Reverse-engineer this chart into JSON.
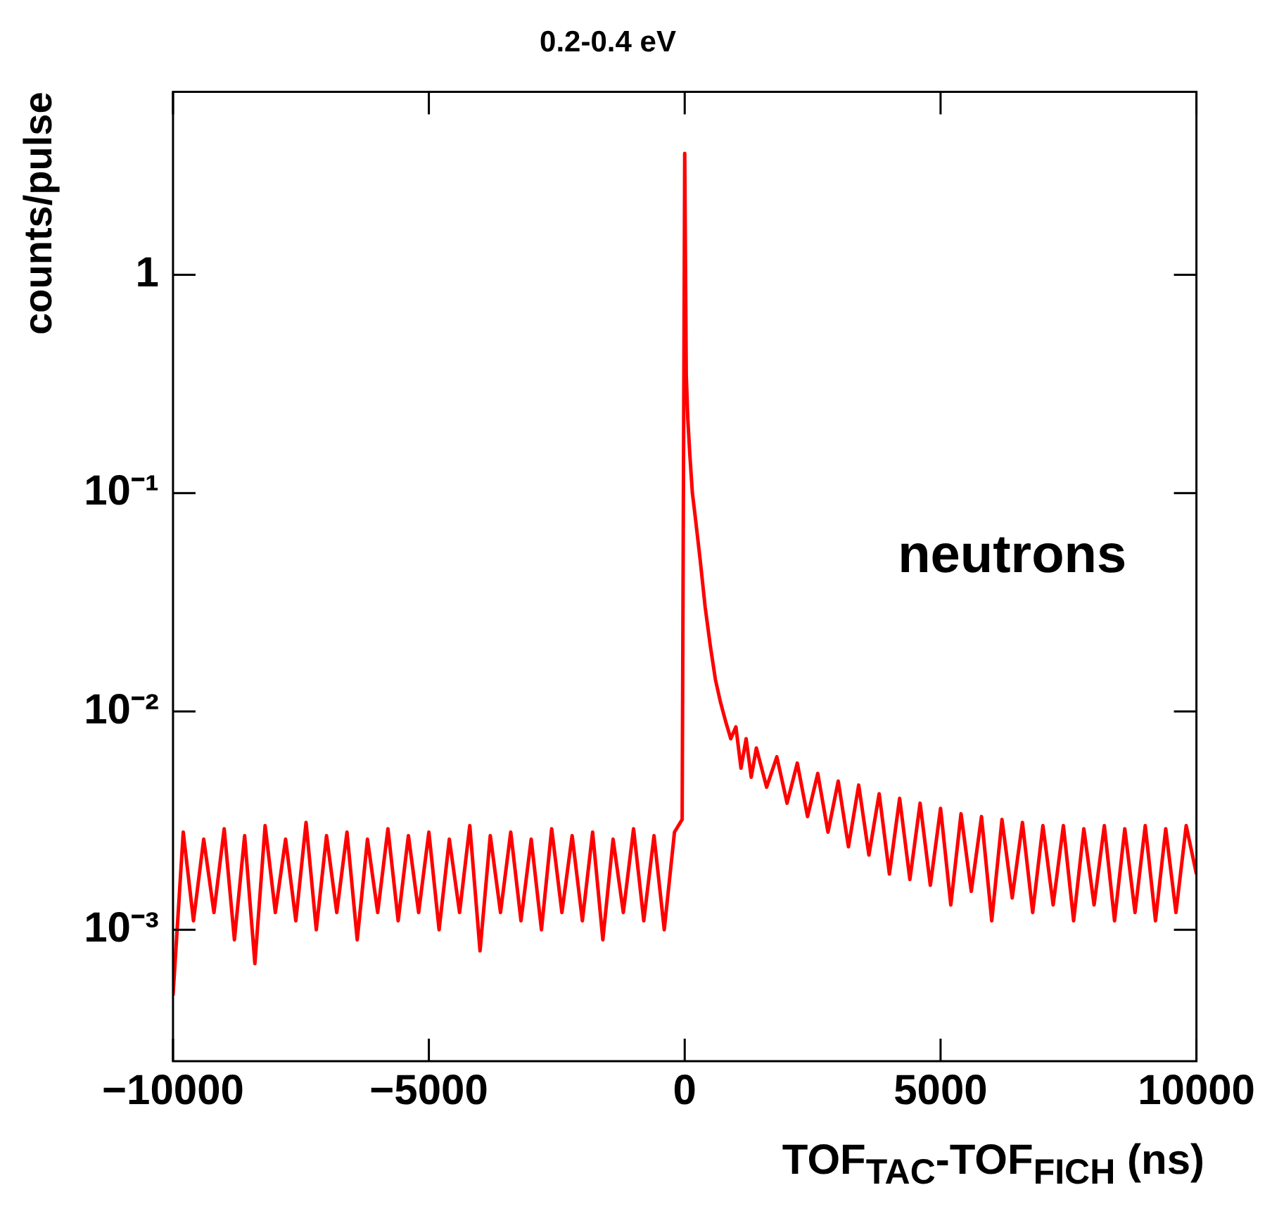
{
  "chart_data": {
    "type": "line",
    "title": "0.2-0.4 eV",
    "xlabel": "TOF$_{TAC}$-TOF$_{FICH}$ (ns)",
    "ylabel": "counts/pulse",
    "xlim": [
      -10000,
      10000
    ],
    "xticks": [
      {
        "value": -10000,
        "label": "−10000"
      },
      {
        "value": -5000,
        "label": "−5000"
      },
      0,
      5000,
      10000
    ],
    "ylim": [
      0.00025,
      6.9
    ],
    "yticks": [
      {
        "value": 0.001,
        "label": "10⁻³"
      },
      {
        "value": 0.01,
        "label": "10⁻²"
      },
      {
        "value": 0.1,
        "label": "10⁻¹"
      },
      1
    ],
    "log": "y",
    "grid": false,
    "legend": false,
    "marker": "none",
    "line_style": "solid",
    "annotations": [
      "neutrons"
    ],
    "series": [
      {
        "color": "#ff0000",
        "x": [
          -10000,
          -9800,
          -9600,
          -9400,
          -9200,
          -9000,
          -8800,
          -8600,
          -8400,
          -8200,
          -8000,
          -7800,
          -7600,
          -7400,
          -7200,
          -7000,
          -6800,
          -6600,
          -6400,
          -6200,
          -6000,
          -5800,
          -5600,
          -5400,
          -5200,
          -5000,
          -4800,
          -4600,
          -4400,
          -4200,
          -4000,
          -3800,
          -3600,
          -3400,
          -3200,
          -3000,
          -2800,
          -2600,
          -2400,
          -2200,
          -2000,
          -1800,
          -1600,
          -1400,
          -1200,
          -1000,
          -800,
          -600,
          -400,
          -200,
          -50,
          0,
          30,
          60,
          100,
          150,
          200,
          300,
          400,
          500,
          600,
          700,
          800,
          900,
          1000,
          1100,
          1200,
          1300,
          1400,
          1600,
          1800,
          2000,
          2200,
          2400,
          2600,
          2800,
          3000,
          3200,
          3400,
          3600,
          3800,
          4000,
          4200,
          4400,
          4600,
          4800,
          5000,
          5200,
          5400,
          5600,
          5800,
          6000,
          6200,
          6400,
          6600,
          6800,
          7000,
          7200,
          7400,
          7600,
          7800,
          8000,
          8200,
          8400,
          8600,
          8800,
          9000,
          9200,
          9400,
          9600,
          9800,
          10000
        ],
        "values": [
          0.0005,
          0.0028,
          0.0011,
          0.0026,
          0.0012,
          0.0029,
          0.0009,
          0.0027,
          0.0007,
          0.003,
          0.0012,
          0.0026,
          0.0011,
          0.0031,
          0.001,
          0.0027,
          0.0012,
          0.0028,
          0.0009,
          0.0026,
          0.0012,
          0.0029,
          0.0011,
          0.0027,
          0.0012,
          0.0028,
          0.001,
          0.0026,
          0.0012,
          0.003,
          0.0008,
          0.0027,
          0.0012,
          0.0028,
          0.0011,
          0.0026,
          0.001,
          0.0029,
          0.0012,
          0.0027,
          0.0011,
          0.0028,
          0.0009,
          0.0026,
          0.0012,
          0.0029,
          0.0011,
          0.0027,
          0.001,
          0.0028,
          0.0032,
          3.6,
          0.35,
          0.22,
          0.15,
          0.1,
          0.08,
          0.05,
          0.03,
          0.02,
          0.014,
          0.011,
          0.009,
          0.0075,
          0.0085,
          0.0055,
          0.0075,
          0.005,
          0.0068,
          0.0045,
          0.0062,
          0.0038,
          0.0058,
          0.0033,
          0.0052,
          0.0028,
          0.0048,
          0.0024,
          0.0046,
          0.0022,
          0.0042,
          0.0018,
          0.004,
          0.0017,
          0.0038,
          0.0016,
          0.0036,
          0.0013,
          0.0034,
          0.0015,
          0.0033,
          0.0011,
          0.0032,
          0.0014,
          0.0031,
          0.0012,
          0.003,
          0.0013,
          0.003,
          0.0011,
          0.0029,
          0.0013,
          0.003,
          0.0011,
          0.0029,
          0.0012,
          0.003,
          0.0011,
          0.0029,
          0.0012,
          0.003,
          0.0018
        ]
      }
    ]
  }
}
